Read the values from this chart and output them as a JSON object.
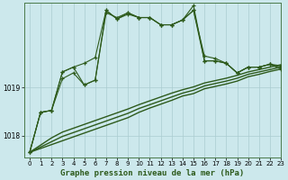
{
  "title": "Graphe pression niveau de la mer (hPa)",
  "background_color": "#cce8ec",
  "line_color": "#2d5a1b",
  "grid_color": "#aaccd0",
  "xlim": [
    -0.5,
    23
  ],
  "ylim": [
    1017.55,
    1020.75
  ],
  "yticks": [
    1018,
    1019
  ],
  "xticks": [
    0,
    1,
    2,
    3,
    4,
    5,
    6,
    7,
    8,
    9,
    10,
    11,
    12,
    13,
    14,
    15,
    16,
    17,
    18,
    19,
    20,
    21,
    22,
    23
  ],
  "series1": [
    1017.65,
    1018.48,
    1018.52,
    1019.18,
    1019.3,
    1019.05,
    1019.15,
    1020.55,
    1020.45,
    1020.55,
    1020.45,
    1020.45,
    1020.3,
    1020.3,
    1020.4,
    1020.6,
    1019.65,
    1019.6,
    1019.5,
    1019.3,
    1019.42,
    1019.42,
    1019.48,
    1019.45
  ],
  "series2": [
    1017.65,
    1018.48,
    1018.52,
    1019.32,
    1019.42,
    1019.5,
    1019.62,
    1020.6,
    1020.42,
    1020.52,
    1020.45,
    1020.45,
    1020.3,
    1020.3,
    1020.4,
    1020.7,
    1019.55,
    1019.55,
    1019.5,
    1019.3,
    1019.42,
    1019.42,
    1019.48,
    1019.38
  ],
  "series3": [
    1017.65,
    1018.48,
    1018.52,
    1019.32,
    1019.42,
    1019.05,
    1019.15,
    1020.6,
    1020.42,
    1020.55,
    1020.45,
    1020.45,
    1020.3,
    1020.3,
    1020.4,
    1020.6,
    1019.55,
    1019.55,
    1019.5,
    1019.3,
    1019.42,
    1019.42,
    1019.48,
    1019.42
  ],
  "trend1": [
    1017.65,
    1017.73,
    1017.81,
    1017.89,
    1017.97,
    1018.05,
    1018.13,
    1018.21,
    1018.29,
    1018.37,
    1018.48,
    1018.57,
    1018.65,
    1018.73,
    1018.82,
    1018.87,
    1018.97,
    1019.02,
    1019.07,
    1019.13,
    1019.22,
    1019.27,
    1019.33,
    1019.38
  ],
  "trend2": [
    1017.65,
    1017.76,
    1017.87,
    1017.98,
    1018.06,
    1018.14,
    1018.22,
    1018.3,
    1018.38,
    1018.46,
    1018.56,
    1018.64,
    1018.72,
    1018.8,
    1018.88,
    1018.94,
    1019.03,
    1019.08,
    1019.13,
    1019.19,
    1019.27,
    1019.32,
    1019.37,
    1019.42
  ],
  "trend3": [
    1017.65,
    1017.8,
    1017.95,
    1018.07,
    1018.15,
    1018.23,
    1018.31,
    1018.39,
    1018.47,
    1018.55,
    1018.64,
    1018.72,
    1018.8,
    1018.88,
    1018.95,
    1019.01,
    1019.09,
    1019.14,
    1019.19,
    1019.25,
    1019.32,
    1019.37,
    1019.42,
    1019.47
  ]
}
